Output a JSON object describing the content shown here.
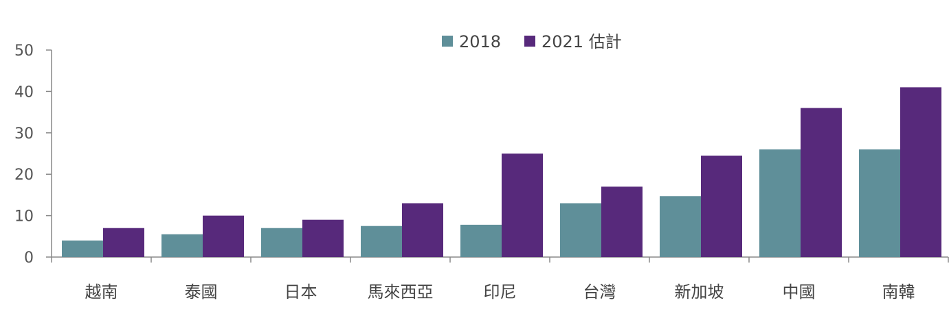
{
  "chart_data": {
    "type": "bar",
    "categories": [
      "越南",
      "泰國",
      "日本",
      "馬來西亞",
      "印尼",
      "台灣",
      "新加坡",
      "中國",
      "南韓"
    ],
    "series": [
      {
        "name": "2018",
        "color": "#5f8f99",
        "values": [
          4,
          5.5,
          7,
          7.5,
          7.8,
          13,
          14.7,
          26,
          26
        ]
      },
      {
        "name": "2021 估計",
        "color": "#57297b",
        "values": [
          7,
          10,
          9,
          13,
          25,
          17,
          24.5,
          36,
          41
        ]
      }
    ],
    "title": "",
    "xlabel": "",
    "ylabel": "",
    "ylim": [
      0,
      50
    ],
    "yticks": [
      0,
      10,
      20,
      30,
      40,
      50
    ],
    "grid": false,
    "legend": "top-center"
  }
}
